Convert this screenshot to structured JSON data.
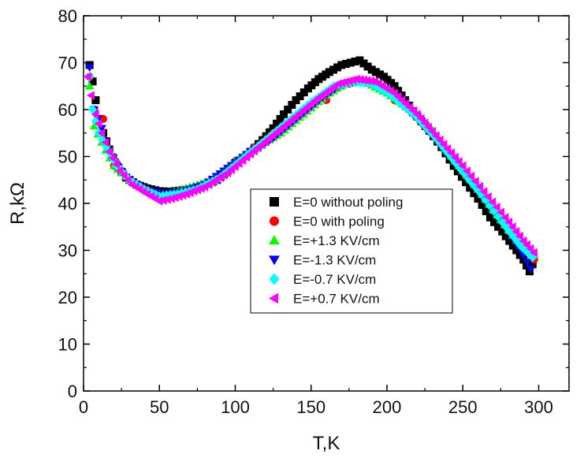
{
  "chart_data": {
    "type": "scatter",
    "xlabel": "T,K",
    "ylabel": "R,kΩ",
    "xlim": [
      0,
      320
    ],
    "ylim": [
      0,
      80
    ],
    "x_ticks": [
      0,
      50,
      100,
      150,
      200,
      250,
      300
    ],
    "y_ticks": [
      0,
      10,
      20,
      30,
      40,
      50,
      60,
      70,
      80
    ],
    "grid": false,
    "legend_position": "center-right",
    "series": [
      {
        "name": "E=0 without poling",
        "marker": "square",
        "color": "#000000",
        "points": [
          [
            4,
            69.5
          ],
          [
            6,
            66
          ],
          [
            8,
            62
          ],
          [
            10,
            58
          ],
          [
            13,
            55
          ],
          [
            17,
            51.5
          ],
          [
            22,
            48
          ],
          [
            28,
            45.5
          ],
          [
            35,
            44
          ],
          [
            42,
            43.2
          ],
          [
            50,
            42.6
          ],
          [
            58,
            42.5
          ],
          [
            65,
            42.8
          ],
          [
            72,
            43
          ],
          [
            80,
            44
          ],
          [
            88,
            45
          ],
          [
            95,
            47
          ],
          [
            102,
            49
          ],
          [
            110,
            51
          ],
          [
            118,
            53.5
          ],
          [
            125,
            56
          ],
          [
            132,
            59
          ],
          [
            140,
            62
          ],
          [
            148,
            64.5
          ],
          [
            155,
            66.5
          ],
          [
            162,
            68
          ],
          [
            170,
            69.5
          ],
          [
            176,
            70
          ],
          [
            182,
            70.5
          ],
          [
            190,
            68.5
          ],
          [
            198,
            67
          ],
          [
            205,
            65
          ],
          [
            212,
            62
          ],
          [
            220,
            58.5
          ],
          [
            228,
            55.5
          ],
          [
            236,
            52
          ],
          [
            244,
            48
          ],
          [
            252,
            44.5
          ],
          [
            260,
            41
          ],
          [
            268,
            37
          ],
          [
            276,
            34
          ],
          [
            283,
            31
          ],
          [
            290,
            28
          ],
          [
            294,
            25.5
          ],
          [
            296,
            27
          ]
        ]
      },
      {
        "name": "E=0 with poling",
        "marker": "circle",
        "color": "#ff0000",
        "points": [
          [
            4,
            67
          ],
          [
            7,
            60
          ],
          [
            13,
            58
          ],
          [
            20,
            48
          ],
          [
            35,
            44
          ],
          [
            50,
            42
          ],
          [
            65,
            42.5
          ],
          [
            80,
            44
          ],
          [
            100,
            49
          ],
          [
            125,
            55
          ],
          [
            145,
            60
          ],
          [
            160,
            62
          ],
          [
            175,
            65.5
          ],
          [
            190,
            65.5
          ],
          [
            205,
            62
          ],
          [
            225,
            56.5
          ],
          [
            245,
            49.5
          ],
          [
            265,
            41
          ],
          [
            280,
            34
          ],
          [
            290,
            30
          ],
          [
            297,
            28
          ]
        ]
      },
      {
        "name": "E=+1.3 KV/cm",
        "marker": "triangle-up",
        "color": "#00ff00",
        "points": [
          [
            4,
            65
          ],
          [
            7,
            56.5
          ],
          [
            12,
            53
          ],
          [
            20,
            48
          ],
          [
            30,
            45
          ],
          [
            42,
            42.5
          ],
          [
            55,
            42
          ],
          [
            70,
            43.5
          ],
          [
            85,
            45
          ],
          [
            100,
            49
          ],
          [
            115,
            52
          ],
          [
            130,
            55
          ],
          [
            145,
            59
          ],
          [
            160,
            63
          ],
          [
            172,
            65.5
          ],
          [
            185,
            66
          ],
          [
            200,
            63.5
          ],
          [
            215,
            60
          ],
          [
            230,
            55.5
          ],
          [
            245,
            49
          ],
          [
            260,
            43
          ],
          [
            275,
            36.5
          ],
          [
            288,
            31
          ],
          [
            297,
            29
          ]
        ]
      },
      {
        "name": "E=-1.3 KV/cm",
        "marker": "triangle-down",
        "color": "#0000ff",
        "points": [
          [
            4,
            69
          ],
          [
            7,
            60
          ],
          [
            12,
            56
          ],
          [
            18,
            50
          ],
          [
            28,
            45.5
          ],
          [
            40,
            43
          ],
          [
            52,
            42
          ],
          [
            65,
            42.5
          ],
          [
            80,
            44
          ],
          [
            95,
            47.5
          ],
          [
            110,
            51
          ],
          [
            125,
            54
          ],
          [
            140,
            58
          ],
          [
            155,
            62
          ],
          [
            168,
            65
          ],
          [
            180,
            66
          ],
          [
            192,
            65.5
          ],
          [
            205,
            62.5
          ],
          [
            220,
            58
          ],
          [
            235,
            52.5
          ],
          [
            250,
            46.5
          ],
          [
            265,
            40.5
          ],
          [
            280,
            34
          ],
          [
            290,
            29
          ],
          [
            295,
            26
          ]
        ]
      },
      {
        "name": "E=-0.7 KV/cm",
        "marker": "diamond",
        "color": "#00ffff",
        "points": [
          [
            4,
            67
          ],
          [
            6,
            60
          ],
          [
            10,
            55
          ],
          [
            15,
            52
          ],
          [
            22,
            48
          ],
          [
            30,
            45
          ],
          [
            40,
            43
          ],
          [
            50,
            41.5
          ],
          [
            62,
            42
          ],
          [
            75,
            43
          ],
          [
            90,
            45.5
          ],
          [
            105,
            49.5
          ],
          [
            120,
            53.5
          ],
          [
            135,
            57.5
          ],
          [
            150,
            61.5
          ],
          [
            165,
            65
          ],
          [
            178,
            66
          ],
          [
            190,
            65.5
          ],
          [
            203,
            63
          ],
          [
            218,
            59
          ],
          [
            232,
            54
          ],
          [
            248,
            47.5
          ],
          [
            262,
            42
          ],
          [
            276,
            36
          ],
          [
            288,
            31
          ],
          [
            296,
            28.5
          ]
        ]
      },
      {
        "name": "E=+0.7 KV/cm",
        "marker": "triangle-left",
        "color": "#ff00ff",
        "points": [
          [
            3,
            67
          ],
          [
            5,
            63
          ],
          [
            8,
            59
          ],
          [
            12,
            55
          ],
          [
            17,
            51
          ],
          [
            24,
            47
          ],
          [
            32,
            44
          ],
          [
            42,
            42
          ],
          [
            50,
            40.5
          ],
          [
            58,
            41
          ],
          [
            68,
            42
          ],
          [
            80,
            43.5
          ],
          [
            95,
            46.5
          ],
          [
            110,
            50.5
          ],
          [
            125,
            54.5
          ],
          [
            140,
            58.5
          ],
          [
            155,
            62.5
          ],
          [
            168,
            65.5
          ],
          [
            180,
            66.5
          ],
          [
            192,
            66
          ],
          [
            205,
            63.5
          ],
          [
            220,
            59
          ],
          [
            235,
            53.5
          ],
          [
            250,
            48
          ],
          [
            264,
            42.5
          ],
          [
            278,
            37
          ],
          [
            290,
            32
          ],
          [
            297,
            29.5
          ]
        ]
      }
    ]
  }
}
